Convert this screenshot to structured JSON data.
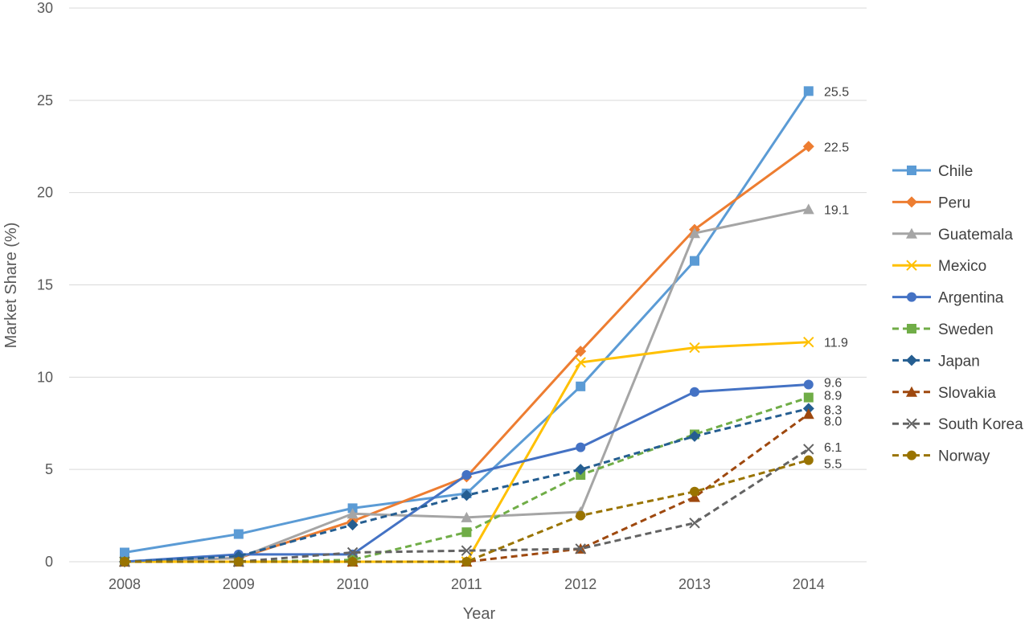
{
  "chart_data": {
    "type": "line",
    "title": "",
    "xlabel": "Year",
    "ylabel": "Market Share (%)",
    "ylim": [
      0,
      30
    ],
    "yticks": [
      "0",
      "5",
      "10",
      "15",
      "20",
      "25",
      "30"
    ],
    "grid": "horizontal",
    "legend_position": "right",
    "categories": [
      "2008",
      "2009",
      "2010",
      "2011",
      "2012",
      "2013",
      "2014"
    ],
    "series": [
      {
        "name": "Chile",
        "color": "#5b9bd5",
        "dash": false,
        "marker": "square",
        "values": [
          0.5,
          1.5,
          2.9,
          3.7,
          9.5,
          16.3,
          25.5
        ],
        "end_label": "25.5"
      },
      {
        "name": "Peru",
        "color": "#ed7d31",
        "dash": false,
        "marker": "diamond",
        "values": [
          0,
          0.2,
          2.2,
          4.6,
          11.4,
          18.0,
          22.5
        ],
        "end_label": "22.5"
      },
      {
        "name": "Guatemala",
        "color": "#a5a5a5",
        "dash": false,
        "marker": "triangle",
        "values": [
          0,
          0.2,
          2.6,
          2.4,
          2.7,
          17.8,
          19.1
        ],
        "end_label": "19.1"
      },
      {
        "name": "Mexico",
        "color": "#ffc000",
        "dash": false,
        "marker": "x",
        "values": [
          0,
          0,
          0,
          0,
          10.8,
          11.6,
          11.9
        ],
        "end_label": "11.9"
      },
      {
        "name": "Argentina",
        "color": "#4472c4",
        "dash": false,
        "marker": "circle",
        "values": [
          0,
          0.4,
          0.4,
          4.7,
          6.2,
          9.2,
          9.6
        ],
        "end_label": "9.6"
      },
      {
        "name": "Sweden",
        "color": "#70ad47",
        "dash": true,
        "marker": "square",
        "values": [
          0,
          0,
          0.1,
          1.6,
          4.7,
          6.9,
          8.9
        ],
        "end_label": "8.9"
      },
      {
        "name": "Japan",
        "color": "#255e91",
        "dash": true,
        "marker": "diamond",
        "values": [
          0,
          0.3,
          2.0,
          3.6,
          5.0,
          6.8,
          8.3
        ],
        "end_label": "8.3"
      },
      {
        "name": "Slovakia",
        "color": "#9e480e",
        "dash": true,
        "marker": "triangle",
        "values": [
          0,
          0,
          0,
          0,
          0.7,
          3.5,
          8.0
        ],
        "end_label": "8.0"
      },
      {
        "name": "South Korea",
        "color": "#636363",
        "dash": true,
        "marker": "x",
        "values": [
          0,
          0,
          0.5,
          0.6,
          0.7,
          2.1,
          6.1
        ],
        "end_label": "6.1"
      },
      {
        "name": "Norway",
        "color": "#997300",
        "dash": true,
        "marker": "circle",
        "values": [
          0,
          0,
          0,
          0,
          2.5,
          3.8,
          5.5
        ],
        "end_label": "5.5"
      }
    ]
  }
}
